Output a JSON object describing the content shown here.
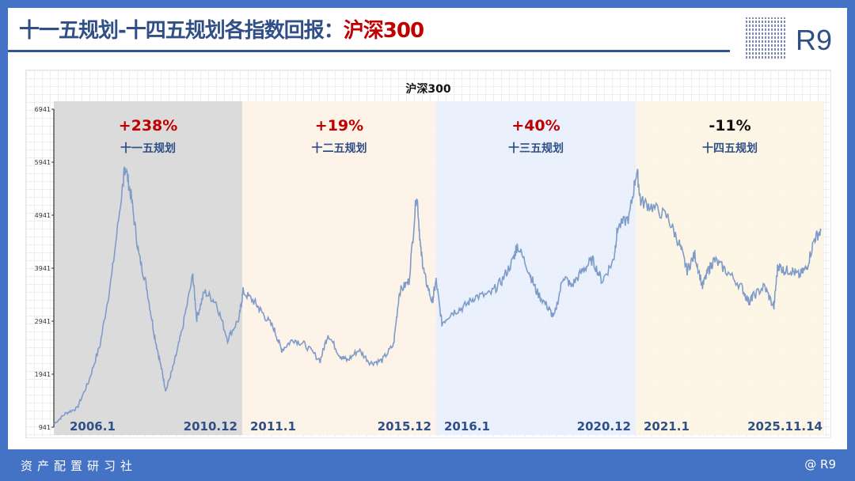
{
  "header": {
    "title": "十一五规划-十四五规划各指数回报：",
    "title_highlight": "沪深300",
    "brand": "R9"
  },
  "footer": {
    "left": "资产配置研习社",
    "right": "@ R9"
  },
  "colors": {
    "frame": "#4472c4",
    "title": "#2f4f86",
    "highlight": "#c00000",
    "line": "#7f9bc9",
    "period_bg": [
      "#d9d9d9",
      "#fdf1e4",
      "#e6eefb",
      "#fdf5e2"
    ]
  },
  "chart_data": {
    "type": "line",
    "title": "沪深300",
    "ylim": [
      941,
      6941
    ],
    "yticks": [
      "941",
      "1941",
      "2941",
      "3941",
      "4941",
      "5941",
      "6941"
    ],
    "grid": true,
    "periods": [
      {
        "name": "十一五规划",
        "return": "+238%",
        "start": "2006.1",
        "end": "2010.12",
        "return_color": "#c00000"
      },
      {
        "name": "十二五规划",
        "return": "+19%",
        "start": "2011.1",
        "end": "2015.12",
        "return_color": "#c00000"
      },
      {
        "name": "十三五规划",
        "return": "+40%",
        "start": "2016.1",
        "end": "2020.12",
        "return_color": "#c00000"
      },
      {
        "name": "十四五规划",
        "return": "-11%",
        "start": "2021.1",
        "end": "2025.11.14",
        "return_color": "#111111"
      }
    ],
    "series": [
      {
        "x": [
          2006.0,
          2006.3,
          2006.6,
          2006.9,
          2007.2,
          2007.5,
          2007.8,
          2007.85,
          2008.0,
          2008.2,
          2008.4,
          2008.6,
          2008.8,
          2008.9,
          2009.1,
          2009.3,
          2009.6,
          2009.7,
          2009.9,
          2010.2,
          2010.5,
          2010.8,
          2010.9,
          2011.2,
          2011.4,
          2011.7,
          2011.9,
          2012.2,
          2012.5,
          2012.9,
          2013.1,
          2013.4,
          2013.6,
          2013.9,
          2014.2,
          2014.5,
          2014.8,
          2014.95,
          2015.2,
          2015.4,
          2015.5,
          2015.6,
          2015.8,
          2015.9,
          2016.05,
          2016.3,
          2016.6,
          2016.9,
          2017.3,
          2017.6,
          2017.9,
          2018.0,
          2018.3,
          2018.5,
          2018.8,
          2018.95,
          2019.2,
          2019.4,
          2019.7,
          2019.95,
          2020.2,
          2020.5,
          2020.6,
          2020.9,
          2021.1,
          2021.2,
          2021.5,
          2021.9,
          2022.2,
          2022.4,
          2022.6,
          2022.8,
          2022.95,
          2023.1,
          2023.4,
          2023.8,
          2024.0,
          2024.1,
          2024.4,
          2024.65,
          2024.75,
          2024.9,
          2025.1,
          2025.3,
          2025.5,
          2025.7,
          2025.87
        ],
        "y": [
          1000,
          1200,
          1300,
          1800,
          2500,
          3800,
          5600,
          5877,
          5300,
          4200,
          3600,
          2700,
          2000,
          1627,
          2100,
          2700,
          3800,
          3000,
          3500,
          3300,
          2600,
          3000,
          3500,
          3300,
          3100,
          2800,
          2400,
          2600,
          2500,
          2200,
          2700,
          2300,
          2200,
          2400,
          2150,
          2200,
          2500,
          3500,
          3700,
          5380,
          4300,
          3800,
          3300,
          3700,
          2900,
          3100,
          3200,
          3400,
          3450,
          3700,
          4100,
          4380,
          3900,
          3500,
          3200,
          3000,
          3800,
          3600,
          3900,
          4100,
          3700,
          4100,
          4700,
          4900,
          5800,
          5200,
          5100,
          4900,
          4400,
          3900,
          4200,
          3600,
          3900,
          4100,
          3900,
          3600,
          3300,
          3400,
          3600,
          3200,
          4000,
          3900,
          3900,
          3800,
          3950,
          4500,
          4650
        ]
      }
    ]
  }
}
